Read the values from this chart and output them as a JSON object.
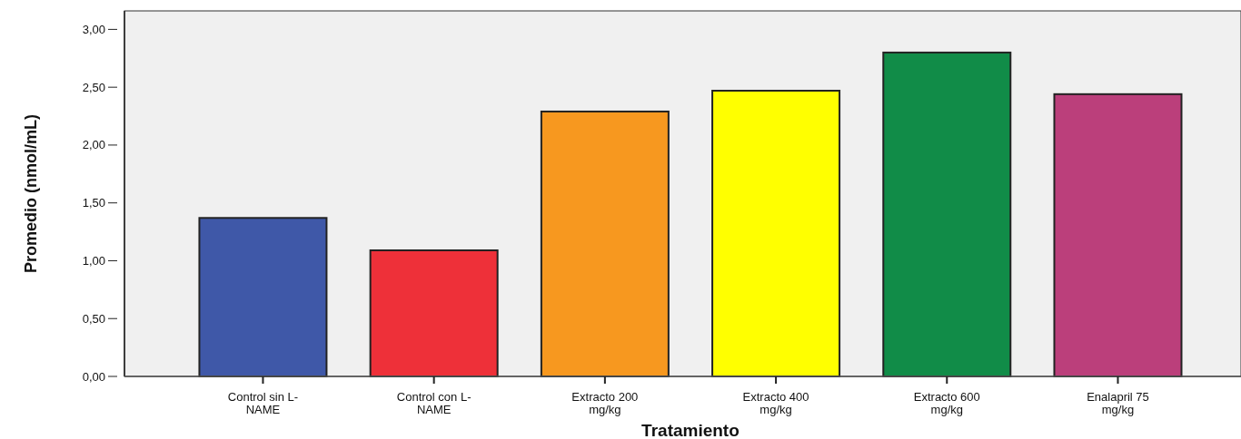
{
  "chart_data": {
    "type": "bar",
    "xlabel": "Tratamiento",
    "ylabel": "Promedio (nmol/mL)",
    "categories": [
      "Control sin L-\nNAME",
      "Control con L-\nNAME",
      "Extracto 200\nmg/kg",
      "Extracto 400\nmg/kg",
      "Extracto 600\nmg/kg",
      "Enalapril 75\nmg/kg"
    ],
    "values": [
      1.37,
      1.09,
      2.29,
      2.47,
      2.8,
      2.44
    ],
    "colors": [
      "#3f58a8",
      "#ee3039",
      "#f7981f",
      "#ffff00",
      "#118c48",
      "#bb3f7b"
    ],
    "ylim": [
      0,
      3.16
    ],
    "yticks": [
      {
        "value": 0,
        "label": "0,00"
      },
      {
        "value": 0.5,
        "label": "0,50"
      },
      {
        "value": 1,
        "label": "1,00"
      },
      {
        "value": 1.5,
        "label": "1,50"
      },
      {
        "value": 2,
        "label": "2,00"
      },
      {
        "value": 2.5,
        "label": "2,50"
      },
      {
        "value": 3,
        "label": "3,00"
      }
    ],
    "grid": false
  }
}
